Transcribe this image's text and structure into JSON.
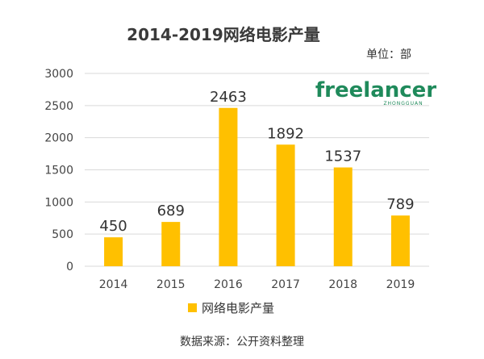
{
  "chart_data": {
    "type": "bar",
    "title": "2014-2019网络电影产量",
    "unit_label": "单位：部",
    "categories": [
      "2014",
      "2015",
      "2016",
      "2017",
      "2018",
      "2019"
    ],
    "series": [
      {
        "name": "网络电影产量",
        "values": [
          450,
          689,
          2463,
          1892,
          1537,
          789
        ]
      }
    ],
    "data_labels": [
      "450",
      "689",
      "2463",
      "1892",
      "1537",
      "789"
    ],
    "yticks": [
      "0",
      "500",
      "1000",
      "1500",
      "2000",
      "2500",
      "3000"
    ],
    "ylim": [
      0,
      3000
    ],
    "grid": true,
    "legend_position": "bottom",
    "source": "数据来源：公开资料整理",
    "colors": {
      "bar": "#ffc000",
      "grid": "#d9d9d9",
      "logo": "#1f8a5b"
    }
  },
  "logo": {
    "text": "freelancer",
    "sub": "ZHONGGUAN"
  }
}
